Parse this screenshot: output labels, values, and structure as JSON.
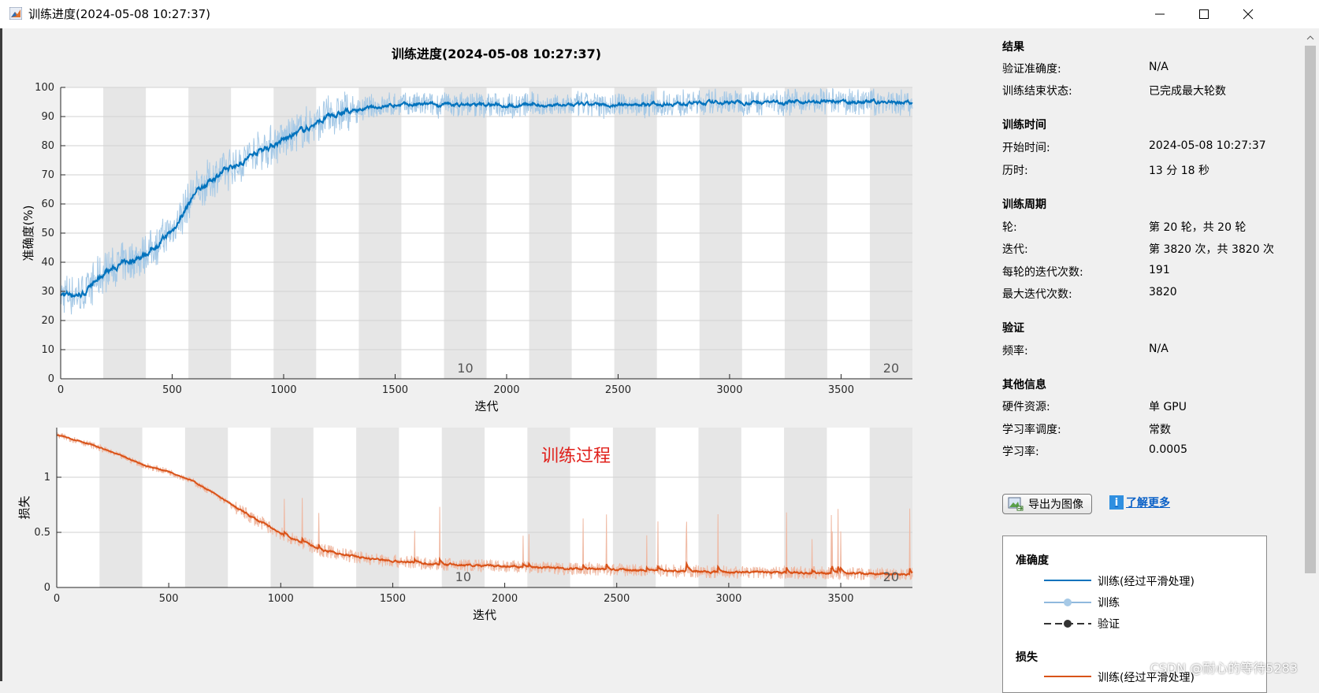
{
  "window": {
    "title": "训练进度(2024-05-08 10:27:37)",
    "controls": [
      "minimize-icon",
      "maximize-icon",
      "close-icon"
    ]
  },
  "plot_title": "训练进度(2024-05-08 10:27:37)",
  "annotation": "训练过程",
  "chart_data": [
    {
      "type": "line",
      "ylabel": "准确度(%)",
      "xlabel": "迭代",
      "xlim": [
        0,
        3820
      ],
      "ylim": [
        0,
        100
      ],
      "xticks": [
        0,
        500,
        1000,
        1500,
        2000,
        2500,
        3000,
        3500
      ],
      "yticks": [
        0,
        10,
        20,
        30,
        40,
        50,
        60,
        70,
        80,
        90,
        100
      ],
      "epoch_markers": [
        "10",
        "20"
      ],
      "epochs": 20,
      "iterations_per_epoch": 191,
      "series": [
        {
          "name": "训练(经过平滑处理)",
          "color": "#0072bd",
          "x": [
            0,
            100,
            200,
            300,
            400,
            500,
            600,
            700,
            800,
            900,
            1000,
            1100,
            1200,
            1300,
            1400,
            1500,
            1600,
            1700,
            1800,
            1900,
            2000,
            2500,
            3000,
            3500,
            3820
          ],
          "y": [
            29,
            29,
            37,
            40,
            44,
            51,
            64,
            70,
            74,
            79,
            82,
            86,
            90,
            92,
            93,
            94,
            94,
            94,
            94,
            94,
            94,
            94,
            95,
            95,
            95
          ]
        },
        {
          "name": "训练",
          "color": "#a6c9e6",
          "x": [
            0,
            100,
            200,
            300,
            400,
            500,
            600,
            700,
            800,
            900,
            1000,
            1100,
            1200,
            1300,
            1400,
            1500,
            1600,
            1700,
            1800,
            1900,
            2000,
            2500,
            3000,
            3500,
            3820
          ],
          "y": [
            29,
            29,
            37,
            40,
            44,
            51,
            64,
            70,
            74,
            79,
            82,
            86,
            90,
            92,
            93,
            94,
            94,
            94,
            94,
            94,
            94,
            94,
            95,
            95,
            95
          ]
        }
      ]
    },
    {
      "type": "line",
      "ylabel": "损失",
      "xlabel": "迭代",
      "xlim": [
        0,
        3820
      ],
      "ylim": [
        0,
        1.45
      ],
      "xticks": [
        0,
        500,
        1000,
        1500,
        2000,
        2500,
        3000,
        3500
      ],
      "yticks": [
        0,
        0.5,
        1
      ],
      "epoch_markers": [
        "10",
        "20"
      ],
      "epochs": 20,
      "iterations_per_epoch": 191,
      "series": [
        {
          "name": "训练(经过平滑处理)",
          "color": "#d95319",
          "x": [
            0,
            100,
            200,
            300,
            400,
            500,
            600,
            700,
            800,
            900,
            1000,
            1100,
            1200,
            1300,
            1400,
            1500,
            1700,
            2000,
            2500,
            3000,
            3500,
            3820
          ],
          "y": [
            1.38,
            1.33,
            1.26,
            1.18,
            1.1,
            1.05,
            0.97,
            0.85,
            0.72,
            0.6,
            0.49,
            0.4,
            0.33,
            0.29,
            0.26,
            0.24,
            0.21,
            0.19,
            0.16,
            0.14,
            0.13,
            0.12
          ]
        },
        {
          "name": "训练",
          "color": "#efb9a3",
          "x": [
            0,
            100,
            200,
            300,
            400,
            500,
            600,
            700,
            800,
            900,
            1000,
            1100,
            1200,
            1300,
            1400,
            1500,
            1700,
            2000,
            2500,
            3000,
            3500,
            3820
          ],
          "y": [
            1.38,
            1.33,
            1.26,
            1.18,
            1.1,
            1.05,
            0.97,
            0.85,
            0.72,
            0.6,
            0.49,
            0.4,
            0.33,
            0.29,
            0.26,
            0.24,
            0.21,
            0.19,
            0.16,
            0.14,
            0.13,
            0.12
          ]
        }
      ]
    }
  ],
  "panel": {
    "results": {
      "title": "结果",
      "rows": [
        {
          "label": "验证准确度:",
          "value": "N/A"
        },
        {
          "label": "训练结束状态:",
          "value": "已完成最大轮数"
        }
      ]
    },
    "time": {
      "title": "训练时间",
      "rows": [
        {
          "label": "开始时间:",
          "value": "2024-05-08 10:27:37"
        },
        {
          "label": "历时:",
          "value": "13 分 18 秒"
        }
      ]
    },
    "cycle": {
      "title": "训练周期",
      "rows": [
        {
          "label": "轮:",
          "value": "第 20 轮，共 20 轮"
        },
        {
          "label": "迭代:",
          "value": "第 3820 次，共 3820 次"
        },
        {
          "label": "每轮的迭代次数:",
          "value": "191"
        },
        {
          "label": "最大迭代次数:",
          "value": "3820"
        }
      ]
    },
    "validation": {
      "title": "验证",
      "rows": [
        {
          "label": "频率:",
          "value": "N/A"
        }
      ]
    },
    "other": {
      "title": "其他信息",
      "rows": [
        {
          "label": "硬件资源:",
          "value": "单 GPU"
        },
        {
          "label": "学习率调度:",
          "value": "常数"
        },
        {
          "label": "学习率:",
          "value": "0.0005"
        }
      ]
    },
    "export_label": "导出为图像",
    "learn_more": "了解更多",
    "legend": {
      "accuracy_title": "准确度",
      "items": [
        "训练(经过平滑处理)",
        "训练",
        "验证"
      ],
      "loss_title": "损失",
      "loss_items": [
        "训练(经过平滑处理)"
      ]
    }
  },
  "watermark": "CSDN @耐心的等待5283"
}
